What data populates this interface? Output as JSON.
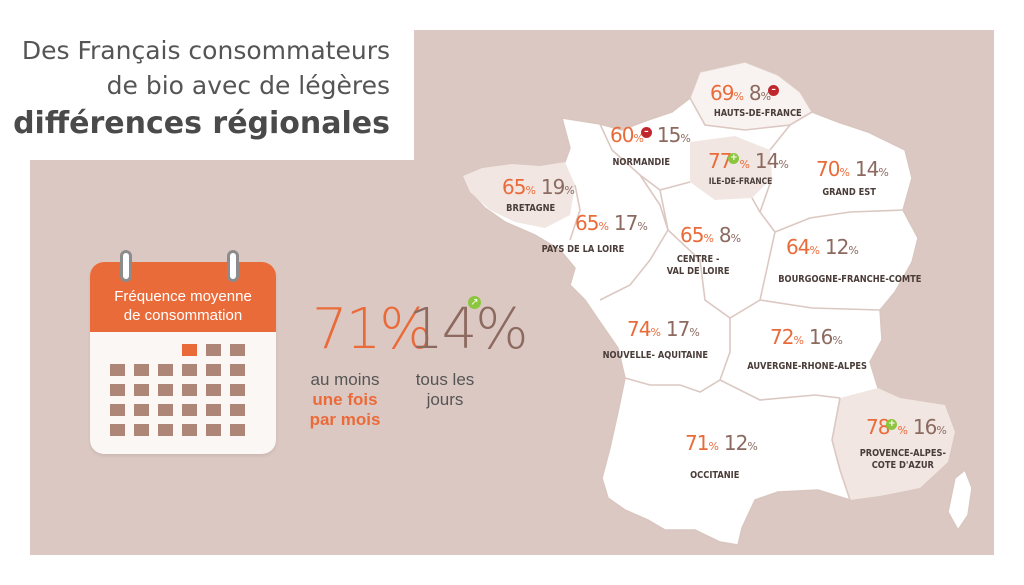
{
  "title": {
    "line1": "Des Français consommateurs",
    "line2": "de bio avec de légères",
    "line3": "différences régionales"
  },
  "calendar": {
    "caption_line1": "Fréquence moyenne",
    "caption_line2": "de consommation"
  },
  "stats": {
    "monthly": {
      "value": "71%",
      "caption_line1": "au moins",
      "caption_line2": "une fois",
      "caption_line3": "par mois"
    },
    "daily": {
      "value": "14%",
      "caption_line1": "tous les",
      "caption_line2": "jours",
      "trend": "up"
    }
  },
  "unit": "%",
  "regions": [
    {
      "name": "HAUTS-DE-FRANCE",
      "monthly": "69",
      "daily": "8",
      "trend": "down"
    },
    {
      "name": "NORMANDIE",
      "monthly": "60",
      "daily": "15",
      "trend": "down"
    },
    {
      "name": "ILE-DE-FRANCE",
      "monthly": "77",
      "daily": "14",
      "trend": "up"
    },
    {
      "name": "GRAND EST",
      "monthly": "70",
      "daily": "14",
      "trend": ""
    },
    {
      "name": "BRETAGNE",
      "monthly": "65",
      "daily": "19",
      "trend": ""
    },
    {
      "name": "PAYS DE LA LOIRE",
      "monthly": "65",
      "daily": "17",
      "trend": ""
    },
    {
      "name_line1": "CENTRE -",
      "name_line2": "VAL DE LOIRE",
      "monthly": "65",
      "daily": "8",
      "trend": ""
    },
    {
      "name": "BOURGOGNE-FRANCHE-COMTE",
      "monthly": "64",
      "daily": "12",
      "trend": ""
    },
    {
      "name": "NOUVELLE- AQUITAINE",
      "monthly": "74",
      "daily": "17",
      "trend": ""
    },
    {
      "name": "AUVERGNE-RHONE-ALPES",
      "monthly": "72",
      "daily": "16",
      "trend": ""
    },
    {
      "name": "OCCITANIE",
      "monthly": "71",
      "daily": "12",
      "trend": ""
    },
    {
      "name_line1": "PROVENCE-ALPES-",
      "name_line2": "COTE D'AZUR",
      "monthly": "78",
      "daily": "16",
      "trend": "up"
    }
  ],
  "colors": {
    "background": "#dcc8c2",
    "accent": "#ea6b3a",
    "secondary": "#8c6a60",
    "map_fill": "#ffffff",
    "map_highlight": "#f1e6e2",
    "trend_up": "#8cc63e",
    "trend_down": "#c0272d"
  }
}
